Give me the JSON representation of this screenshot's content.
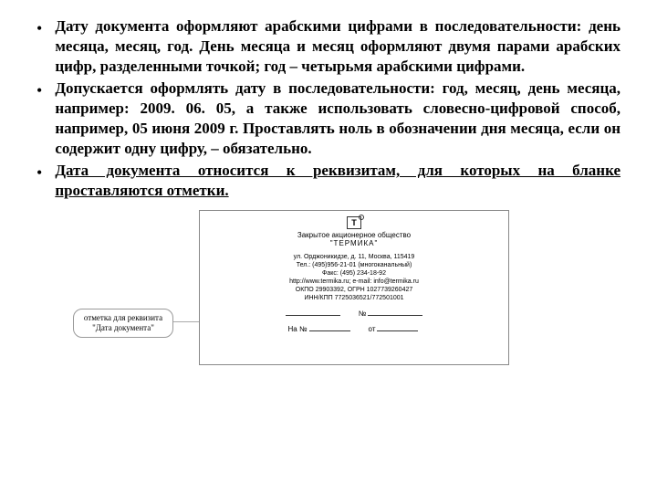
{
  "bullets": [
    "Дату документа оформляют арабскими цифрами в последовательности: день месяца, месяц, год. День месяца и месяц оформляют двумя парами арабских цифр, разделенными точкой; год – четырьмя арабскими цифрами.",
    "Допускается оформлять дату в последовательности: год, месяц, день месяца, например: 2009. 06. 05, а также использовать словесно-цифровой способ, например, 05 июня 2009 г. Проставлять ноль в обозначении дня месяца, если он содержит одну цифру, – обязательно.",
    "<span class='u'>Дата документа относится к реквизитам, для которых на бланке проставляются отметки.</span>"
  ],
  "bullet_char": "•",
  "callout": {
    "line1": "отметка для реквизита",
    "line2": "\"Дата документа\""
  },
  "form": {
    "logo_char": "T",
    "org_line1": "Закрытое акционерное общество",
    "org_line2": "\"ТЕРМИКА\"",
    "addr1": "ул. Орджоникидзе, д. 11, Москва, 115419",
    "addr2": "Тел.: (495)956-21-01 (многоканальный)",
    "addr3": "Факс: (495) 234-18-92",
    "addr4": "http://www.termika.ru; e-mail: info@termika.ru",
    "addr5": "ОКПО 29903392, ОГРН 1027739260427",
    "addr6": "ИНН/КПП 7725036521/772501001",
    "row1_right": "№",
    "row2_left": "На №",
    "row2_right": "от"
  }
}
